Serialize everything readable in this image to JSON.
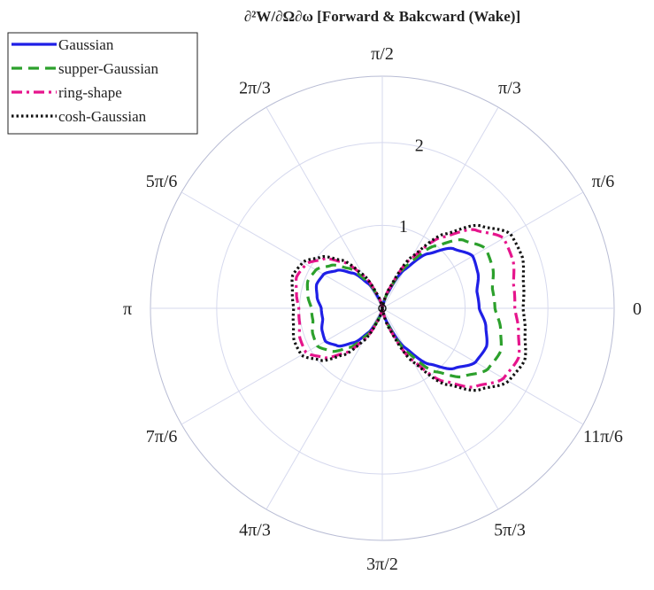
{
  "chart_data": {
    "type": "polar-line",
    "title": "∂²W/∂Ω∂ω [Forward & Bakcward (Wake)]",
    "angle_tick_labels": [
      "0",
      "π/6",
      "π/3",
      "π/2",
      "2π/3",
      "5π/6",
      "π",
      "7π/6",
      "4π/3",
      "3π/2",
      "5π/3",
      "11π/6"
    ],
    "angle_tick_values_deg": [
      0,
      30,
      60,
      90,
      120,
      150,
      180,
      210,
      240,
      270,
      300,
      330
    ],
    "radial_tick_labels": [
      "1",
      "2"
    ],
    "radial_tick_values": [
      1,
      2
    ],
    "radial_range": [
      0,
      2.8
    ],
    "grid": true,
    "legend_position": "top-left",
    "series": [
      {
        "name": "Gaussian",
        "color": "#1f1fe6",
        "line_style": "solid",
        "profile": [
          [
            -80,
            0.02
          ],
          [
            -70,
            0.2
          ],
          [
            -60,
            0.55
          ],
          [
            -50,
            0.88
          ],
          [
            -40,
            1.13
          ],
          [
            -30,
            1.3
          ],
          [
            -20,
            1.34
          ],
          [
            -10,
            1.27
          ],
          [
            0,
            1.17
          ],
          [
            10,
            1.16
          ],
          [
            20,
            1.23
          ],
          [
            30,
            1.26
          ],
          [
            40,
            1.12
          ],
          [
            50,
            0.86
          ],
          [
            60,
            0.54
          ],
          [
            70,
            0.2
          ],
          [
            80,
            0.02
          ]
        ]
      },
      {
        "name": "supper-Gaussian",
        "color": "#2ca02c",
        "line_style": "dashed",
        "profile": [
          [
            -80,
            0.02
          ],
          [
            -70,
            0.23
          ],
          [
            -60,
            0.62
          ],
          [
            -50,
            1.0
          ],
          [
            -40,
            1.28
          ],
          [
            -30,
            1.47
          ],
          [
            -20,
            1.52
          ],
          [
            -10,
            1.45
          ],
          [
            0,
            1.36
          ],
          [
            10,
            1.35
          ],
          [
            20,
            1.42
          ],
          [
            30,
            1.44
          ],
          [
            40,
            1.28
          ],
          [
            50,
            0.98
          ],
          [
            60,
            0.6
          ],
          [
            70,
            0.22
          ],
          [
            80,
            0.02
          ]
        ]
      },
      {
        "name": "ring-shape",
        "color": "#e6158c",
        "line_style": "dashdot",
        "profile": [
          [
            -80,
            0.02
          ],
          [
            -70,
            0.27
          ],
          [
            -60,
            0.72
          ],
          [
            -50,
            1.15
          ],
          [
            -40,
            1.47
          ],
          [
            -30,
            1.69
          ],
          [
            -20,
            1.75
          ],
          [
            -10,
            1.67
          ],
          [
            0,
            1.6
          ],
          [
            10,
            1.61
          ],
          [
            20,
            1.68
          ],
          [
            30,
            1.69
          ],
          [
            40,
            1.47
          ],
          [
            50,
            1.12
          ],
          [
            60,
            0.69
          ],
          [
            70,
            0.25
          ],
          [
            80,
            0.02
          ]
        ]
      },
      {
        "name": "cosh-Gaussian",
        "color": "#111111",
        "line_style": "dotted",
        "profile": [
          [
            -80,
            0.02
          ],
          [
            -70,
            0.28
          ],
          [
            -60,
            0.75
          ],
          [
            -50,
            1.2
          ],
          [
            -40,
            1.53
          ],
          [
            -30,
            1.76
          ],
          [
            -20,
            1.83
          ],
          [
            -10,
            1.75
          ],
          [
            0,
            1.7
          ],
          [
            10,
            1.73
          ],
          [
            20,
            1.8
          ],
          [
            30,
            1.79
          ],
          [
            40,
            1.55
          ],
          [
            50,
            1.17
          ],
          [
            60,
            0.72
          ],
          [
            70,
            0.26
          ],
          [
            80,
            0.02
          ]
        ]
      }
    ],
    "backward_scale": 0.63
  }
}
